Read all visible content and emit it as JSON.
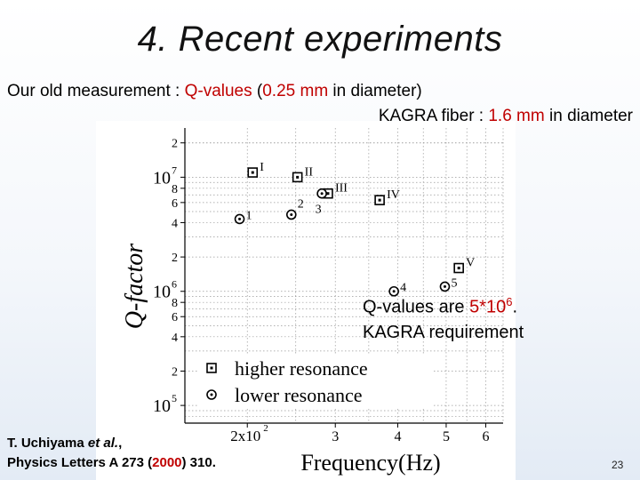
{
  "slide": {
    "title": "4. Recent experiments",
    "page_number": "23"
  },
  "header": {
    "line1_prefix": "Our old measurement : ",
    "line1_q": "Q-values",
    "line1_paren_open": " (",
    "line1_diam": "0.25 mm",
    "line1_rest": " in diameter)",
    "line2_prefix": "KAGRA fiber : ",
    "line2_diam": "1.6 mm",
    "line2_rest": " in diameter"
  },
  "note": {
    "line1_prefix": "Q-values are ",
    "line1_mantissa": "5*10",
    "line1_exp": "6",
    "line1_suffix": ".",
    "line2": "KAGRA requirement"
  },
  "reference": {
    "authors_prefix": "T. Uchiyama ",
    "authors_etal": "et al.",
    "authors_suffix": ",",
    "journal_prefix": "Physics Letters A 273 (",
    "journal_year": "2000",
    "journal_suffix": ") 310."
  },
  "chart_data": {
    "type": "scatter",
    "xlabel": "Frequency(Hz)",
    "ylabel": "Q-factor",
    "x_scale": "log",
    "y_scale": "log",
    "xlim": [
      150,
      650
    ],
    "ylim": [
      70000,
      27000000
    ],
    "x_tick_labels": [
      {
        "value": 200,
        "label": "2x10",
        "sup": "2"
      },
      {
        "value": 300,
        "label": "3",
        "sup": ""
      },
      {
        "value": 400,
        "label": "4",
        "sup": ""
      },
      {
        "value": 500,
        "label": "5",
        "sup": ""
      },
      {
        "value": 600,
        "label": "6",
        "sup": ""
      }
    ],
    "y_tick_labels": [
      {
        "value": 20000000,
        "label": "2",
        "sup": ""
      },
      {
        "value": 10000000,
        "label": "10",
        "sup": "7"
      },
      {
        "value": 8000000,
        "label": "8",
        "sup": ""
      },
      {
        "value": 6000000,
        "label": "6",
        "sup": ""
      },
      {
        "value": 4000000,
        "label": "4",
        "sup": ""
      },
      {
        "value": 2000000,
        "label": "2",
        "sup": ""
      },
      {
        "value": 1000000,
        "label": "10",
        "sup": "6"
      },
      {
        "value": 800000,
        "label": "8",
        "sup": ""
      },
      {
        "value": 600000,
        "label": "6",
        "sup": ""
      },
      {
        "value": 400000,
        "label": "4",
        "sup": ""
      },
      {
        "value": 200000,
        "label": "2",
        "sup": ""
      },
      {
        "value": 100000,
        "label": "10",
        "sup": "5"
      }
    ],
    "grid": true,
    "legend_position": "bottom-left",
    "series": [
      {
        "name": "higher resonance",
        "marker": "square-dot",
        "points": [
          {
            "x": 205,
            "y": 11000000,
            "label": "I"
          },
          {
            "x": 252,
            "y": 10000000,
            "label": "II"
          },
          {
            "x": 290,
            "y": 7200000,
            "label": "III"
          },
          {
            "x": 368,
            "y": 6300000,
            "label": "IV"
          },
          {
            "x": 530,
            "y": 1600000,
            "label": "V"
          }
        ]
      },
      {
        "name": "lower resonance",
        "marker": "circle-dot",
        "points": [
          {
            "x": 193,
            "y": 4300000,
            "label": "1"
          },
          {
            "x": 245,
            "y": 4700000,
            "label": "2"
          },
          {
            "x": 282,
            "y": 7200000,
            "label": "3"
          },
          {
            "x": 393,
            "y": 1000000,
            "label": "4"
          },
          {
            "x": 497,
            "y": 1100000,
            "label": "5"
          }
        ]
      }
    ]
  }
}
